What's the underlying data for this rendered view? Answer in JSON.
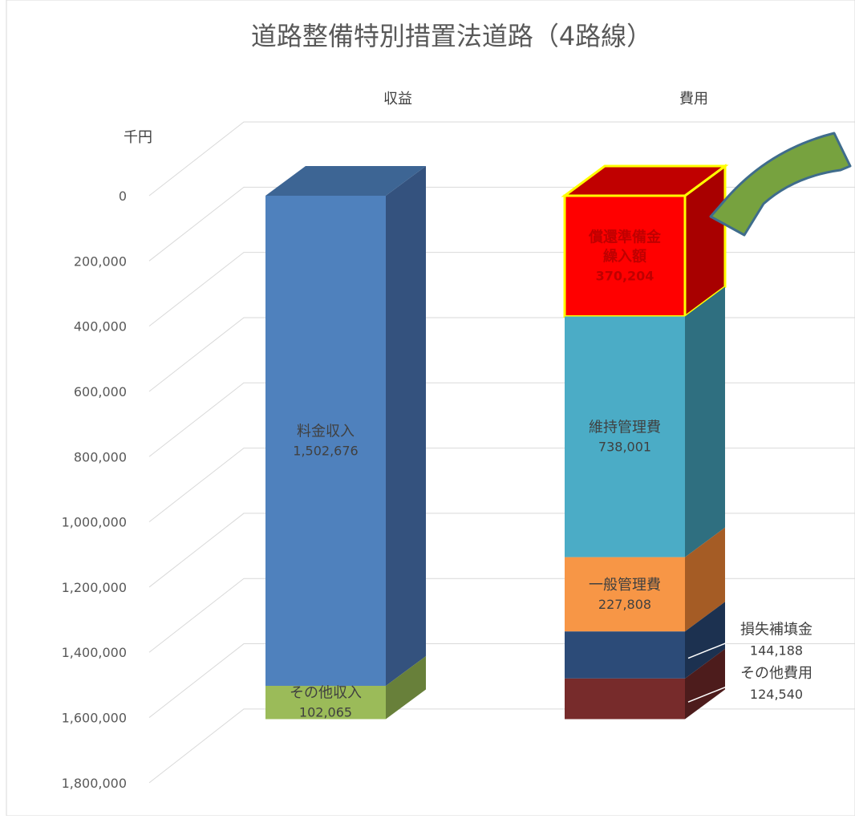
{
  "chart_data": {
    "type": "bar",
    "subtype": "stacked-3d-column",
    "title": "道路整備特別措置法道路（4路線）",
    "unit_label": "千円",
    "y_axis": {
      "reversed": true,
      "ylim": [
        0,
        1800000
      ],
      "tick_step": 200000,
      "ticks": [
        "0",
        "200,000",
        "400,000",
        "600,000",
        "800,000",
        "1,000,000",
        "1,200,000",
        "1,400,000",
        "1,600,000",
        "1,800,000"
      ]
    },
    "grid": true,
    "categories": [
      "収益",
      "費用"
    ],
    "stacks": [
      {
        "category": "収益",
        "segments": [
          {
            "label": "料金収入",
            "value": 1502676,
            "value_text": "1,502,676",
            "color": "#4f81bd",
            "side": "#34527e",
            "top": "#3d6594",
            "label_placement": "inside",
            "label_color": "#404040"
          },
          {
            "label": "その他収入",
            "value": 102065,
            "value_text": "102,065",
            "color": "#9bbb59",
            "side": "#68803a",
            "top": "#7f9d46",
            "label_placement": "inside",
            "label_color": "#404040"
          }
        ]
      },
      {
        "category": "費用",
        "segments": [
          {
            "label": "償還準備金繰入額",
            "label_lines": [
              "償還準備金",
              "繰入額"
            ],
            "value": 370204,
            "value_text": "370,204",
            "color": "#ff0000",
            "side": "#a80000",
            "top": "#c00000",
            "label_placement": "inside",
            "label_color": "#c00000",
            "highlight": "#ffff00"
          },
          {
            "label": "維持管理費",
            "value": 738001,
            "value_text": "738,001",
            "color": "#4bacc6",
            "side": "#2f6f80",
            "top": "#3a8ea4",
            "label_placement": "inside",
            "label_color": "#404040"
          },
          {
            "label": "一般管理費",
            "value": 227808,
            "value_text": "227,808",
            "color": "#f79646",
            "side": "#a55c25",
            "top": "#c8772f",
            "label_placement": "inside",
            "label_color": "#404040"
          },
          {
            "label": "損失補填金",
            "value": 144188,
            "value_text": "144,188",
            "color": "#2c4b78",
            "side": "#1c3150",
            "top": "#243e63",
            "label_placement": "callout",
            "label_color": "#404040"
          },
          {
            "label": "その他費用",
            "value": 124540,
            "value_text": "124,540",
            "color": "#772b2b",
            "side": "#4d1c1c",
            "top": "#5e2222",
            "label_placement": "callout",
            "label_color": "#404040"
          }
        ]
      }
    ],
    "annotation": {
      "shape": "curved-arrow",
      "color": "#77a23f",
      "outline": "#3f6c8c"
    }
  }
}
